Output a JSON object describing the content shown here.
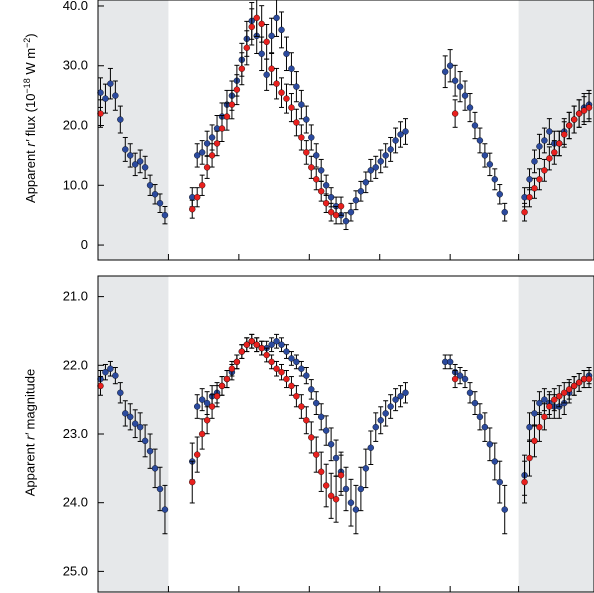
{
  "chart_data": [
    {
      "type": "scatter",
      "ylabel": {
        "prefix": "Apparent ",
        "band": "r′",
        "rest": " flux (10",
        "exp1": "−18",
        "mid": " W m",
        "exp2": "−2",
        "end": ")"
      },
      "ylim": [
        -2.5,
        41
      ],
      "yticks": [
        0,
        10,
        20,
        30,
        40
      ],
      "yticklabels": [
        "0",
        "10.0",
        "20.0",
        "30.0",
        "40.0"
      ],
      "xlim": [
        0,
        1
      ],
      "shaded_x": [
        [
          0,
          0.142
        ],
        [
          0.848,
          1
        ]
      ],
      "series": [
        {
          "color": "#2b4a9e",
          "x": [
            0.005,
            0.015,
            0.025,
            0.035,
            0.045,
            0.055,
            0.065,
            0.075,
            0.085,
            0.095,
            0.105,
            0.115,
            0.125,
            0.135,
            0.19,
            0.2,
            0.21,
            0.22,
            0.23,
            0.24,
            0.25,
            0.26,
            0.27,
            0.28,
            0.29,
            0.3,
            0.31,
            0.32,
            0.33,
            0.34,
            0.35,
            0.36,
            0.37,
            0.38,
            0.39,
            0.4,
            0.41,
            0.42,
            0.43,
            0.44,
            0.45,
            0.46,
            0.47,
            0.48,
            0.49,
            0.5,
            0.51,
            0.52,
            0.53,
            0.54,
            0.55,
            0.56,
            0.57,
            0.58,
            0.59,
            0.6,
            0.61,
            0.62,
            0.7,
            0.71,
            0.72,
            0.73,
            0.74,
            0.75,
            0.76,
            0.77,
            0.78,
            0.79,
            0.8,
            0.81,
            0.82,
            0.86,
            0.87,
            0.88,
            0.89,
            0.9,
            0.91,
            0.92,
            0.93,
            0.94,
            0.95,
            0.96,
            0.97,
            0.98,
            0.99
          ],
          "y": [
            25.5,
            24.5,
            27,
            25,
            21,
            16,
            15,
            13.5,
            14,
            13,
            10,
            8.5,
            7,
            5,
            8,
            15,
            15.5,
            17,
            18,
            19.5,
            21.5,
            23.5,
            25,
            27.5,
            31,
            34.5,
            37.5,
            35,
            32,
            28.5,
            35,
            38,
            36,
            32,
            29.5,
            26.5,
            23.5,
            21,
            18,
            15,
            12.5,
            10,
            8,
            6.5,
            5,
            4,
            5.5,
            7.5,
            9,
            10.5,
            12.5,
            13,
            14,
            15,
            16,
            17.5,
            18.5,
            19,
            29,
            30,
            27.5,
            26.5,
            25,
            23,
            20,
            17.5,
            15,
            13.5,
            11,
            8.5,
            5.5,
            8,
            11,
            14,
            16.5,
            17.5,
            19,
            17,
            17,
            19,
            20,
            21,
            22,
            23,
            23.5
          ]
        },
        {
          "color": "#e8201e",
          "x": [
            0.005,
            0.19,
            0.2,
            0.21,
            0.22,
            0.23,
            0.24,
            0.25,
            0.26,
            0.27,
            0.28,
            0.29,
            0.3,
            0.31,
            0.32,
            0.33,
            0.34,
            0.35,
            0.36,
            0.37,
            0.38,
            0.39,
            0.4,
            0.41,
            0.42,
            0.43,
            0.44,
            0.45,
            0.46,
            0.47,
            0.48,
            0.49,
            0.72,
            0.86,
            0.87,
            0.88,
            0.89,
            0.9,
            0.91,
            0.92,
            0.93,
            0.94,
            0.95,
            0.96,
            0.97,
            0.98,
            0.99
          ],
          "y": [
            22,
            6,
            8,
            10,
            13,
            15,
            17,
            19.5,
            21.5,
            23.5,
            26,
            29.5,
            33,
            36.5,
            38,
            37,
            34,
            29.5,
            27,
            25.5,
            24.5,
            23,
            20.5,
            18,
            15.5,
            13,
            11,
            9,
            7,
            5.5,
            5,
            6.5,
            22,
            5.5,
            8,
            9.5,
            11,
            12.5,
            14.5,
            15.5,
            17,
            18.5,
            20,
            21,
            22,
            22.5,
            23
          ]
        }
      ]
    },
    {
      "type": "scatter",
      "ylabel": {
        "prefix": "Apparent ",
        "band": "r′",
        "rest": " magnitude"
      },
      "ylim": [
        25.3,
        20.7
      ],
      "yticks": [
        21,
        22,
        23,
        24,
        25
      ],
      "yticklabels": [
        "21.0",
        "22.0",
        "23.0",
        "24.0",
        "25.0"
      ],
      "xlim": [
        0,
        1
      ],
      "shaded_x": [
        [
          0,
          0.142
        ],
        [
          0.848,
          1
        ]
      ],
      "series": [
        {
          "color": "#2b4a9e",
          "x": [
            0.005,
            0.015,
            0.025,
            0.035,
            0.045,
            0.055,
            0.065,
            0.075,
            0.085,
            0.095,
            0.105,
            0.115,
            0.125,
            0.135,
            0.19,
            0.2,
            0.21,
            0.22,
            0.23,
            0.24,
            0.25,
            0.26,
            0.27,
            0.28,
            0.29,
            0.3,
            0.31,
            0.32,
            0.33,
            0.34,
            0.35,
            0.36,
            0.37,
            0.38,
            0.39,
            0.4,
            0.41,
            0.42,
            0.43,
            0.44,
            0.45,
            0.46,
            0.47,
            0.48,
            0.49,
            0.5,
            0.51,
            0.52,
            0.53,
            0.54,
            0.55,
            0.56,
            0.57,
            0.58,
            0.59,
            0.6,
            0.61,
            0.62,
            0.7,
            0.71,
            0.72,
            0.73,
            0.74,
            0.75,
            0.76,
            0.77,
            0.78,
            0.79,
            0.8,
            0.81,
            0.82,
            0.86,
            0.87,
            0.88,
            0.89,
            0.9,
            0.91,
            0.92,
            0.93,
            0.94,
            0.95,
            0.96,
            0.97,
            0.98,
            0.99
          ],
          "y": [
            22.2,
            22.1,
            22.05,
            22.15,
            22.4,
            22.7,
            22.75,
            22.85,
            22.9,
            23.1,
            23.25,
            23.5,
            23.8,
            24.1,
            23.4,
            22.6,
            22.5,
            22.55,
            22.45,
            22.4,
            22.3,
            22.2,
            22.1,
            21.95,
            21.8,
            21.7,
            21.65,
            21.7,
            21.75,
            21.75,
            21.7,
            21.65,
            21.7,
            21.8,
            21.9,
            21.95,
            22.05,
            22.15,
            22.35,
            22.55,
            22.75,
            22.95,
            23.15,
            23.35,
            23.55,
            23.8,
            24.0,
            24.1,
            23.8,
            23.5,
            23.2,
            22.9,
            22.8,
            22.7,
            22.6,
            22.5,
            22.45,
            22.4,
            21.95,
            21.95,
            22.1,
            22.15,
            22.2,
            22.4,
            22.55,
            22.75,
            22.9,
            23.15,
            23.4,
            23.7,
            24.1,
            23.6,
            22.9,
            22.7,
            22.55,
            22.5,
            22.55,
            22.6,
            22.6,
            22.55,
            22.4,
            22.3,
            22.25,
            22.2,
            22.15
          ]
        },
        {
          "color": "#e8201e",
          "x": [
            0.005,
            0.19,
            0.2,
            0.21,
            0.22,
            0.23,
            0.24,
            0.25,
            0.26,
            0.27,
            0.28,
            0.29,
            0.3,
            0.31,
            0.32,
            0.33,
            0.34,
            0.35,
            0.36,
            0.37,
            0.38,
            0.39,
            0.4,
            0.41,
            0.42,
            0.43,
            0.44,
            0.45,
            0.46,
            0.47,
            0.48,
            0.49,
            0.72,
            0.86,
            0.87,
            0.88,
            0.89,
            0.9,
            0.91,
            0.92,
            0.93,
            0.94,
            0.95,
            0.96,
            0.97,
            0.98,
            0.99
          ],
          "y": [
            22.3,
            23.7,
            23.3,
            23.0,
            22.8,
            22.6,
            22.45,
            22.3,
            22.2,
            22.05,
            21.95,
            21.8,
            21.7,
            21.65,
            21.7,
            21.75,
            21.85,
            21.95,
            22.05,
            22.1,
            22.2,
            22.3,
            22.45,
            22.6,
            22.8,
            23.05,
            23.3,
            23.55,
            23.75,
            23.9,
            23.95,
            23.6,
            22.2,
            23.7,
            23.35,
            23.1,
            22.9,
            22.75,
            22.6,
            22.5,
            22.45,
            22.4,
            22.35,
            22.3,
            22.25,
            22.2,
            22.2
          ]
        }
      ]
    }
  ]
}
